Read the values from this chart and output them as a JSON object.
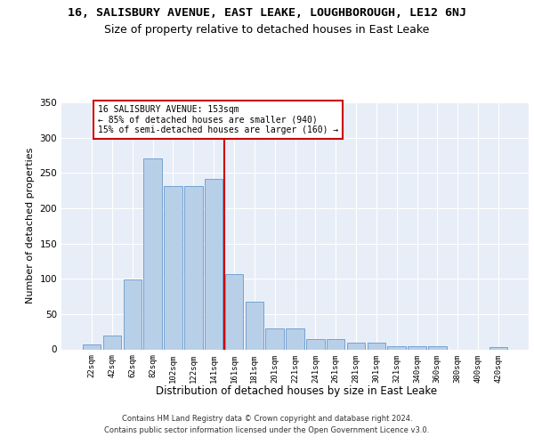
{
  "title": "16, SALISBURY AVENUE, EAST LEAKE, LOUGHBOROUGH, LE12 6NJ",
  "subtitle": "Size of property relative to detached houses in East Leake",
  "xlabel": "Distribution of detached houses by size in East Leake",
  "ylabel": "Number of detached properties",
  "categories": [
    "22sqm",
    "42sqm",
    "62sqm",
    "82sqm",
    "102sqm",
    "122sqm",
    "141sqm",
    "161sqm",
    "181sqm",
    "201sqm",
    "221sqm",
    "241sqm",
    "261sqm",
    "281sqm",
    "301sqm",
    "321sqm",
    "340sqm",
    "360sqm",
    "380sqm",
    "400sqm",
    "420sqm"
  ],
  "values": [
    7,
    19,
    99,
    270,
    232,
    232,
    241,
    106,
    68,
    30,
    30,
    14,
    14,
    10,
    10,
    4,
    4,
    4,
    0,
    0,
    3
  ],
  "bar_color": "#b8cfe8",
  "bar_edge_color": "#6699cc",
  "vline_pos": 7.0,
  "vline_color": "#cc0000",
  "ann_line1": "16 SALISBURY AVENUE: 153sqm",
  "ann_line2": "← 85% of detached houses are smaller (940)",
  "ann_line3": "15% of semi-detached houses are larger (160) →",
  "annotation_box_facecolor": "#ffffff",
  "annotation_box_edgecolor": "#cc0000",
  "ylim_max": 350,
  "yticks": [
    0,
    50,
    100,
    150,
    200,
    250,
    300,
    350
  ],
  "bg_color": "#e8eef8",
  "grid_color": "#ffffff",
  "footer1": "Contains HM Land Registry data © Crown copyright and database right 2024.",
  "footer2": "Contains public sector information licensed under the Open Government Licence v3.0."
}
